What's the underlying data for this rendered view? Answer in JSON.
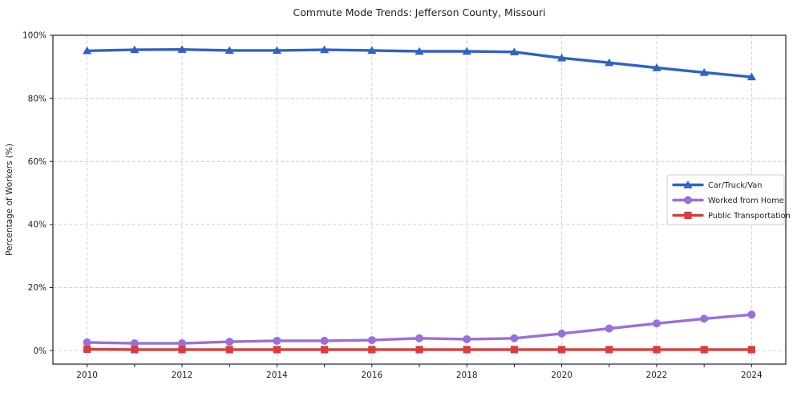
{
  "window": {
    "background": "#ffffff"
  },
  "chart_data": {
    "type": "line",
    "title": "Commute Mode Trends: Jefferson County, Missouri",
    "xlabel": "",
    "ylabel": "Percentage of Workers (%)",
    "grid": true,
    "grid_style": "dashed",
    "legend_position": "center-right",
    "xlim": [
      2009.28,
      2024.72
    ],
    "ylim": [
      -4.3,
      100
    ],
    "x": [
      2010,
      2011,
      2012,
      2013,
      2014,
      2015,
      2016,
      2017,
      2018,
      2019,
      2020,
      2021,
      2022,
      2023,
      2024
    ],
    "x_ticks": [
      2010,
      2012,
      2014,
      2016,
      2018,
      2020,
      2022,
      2024
    ],
    "x_tick_labels": [
      "2010",
      "2012",
      "2014",
      "2016",
      "2018",
      "2020",
      "2022",
      "2024"
    ],
    "y_ticks": [
      0,
      20,
      40,
      60,
      80,
      100
    ],
    "y_tick_labels": [
      "0%",
      "20%",
      "40%",
      "60%",
      "80%",
      "100%"
    ],
    "series": [
      {
        "name": "Car/Truck/Van",
        "color": "#2e62c6",
        "marker": "triangle",
        "values": [
          95.1,
          95.4,
          95.5,
          95.2,
          95.2,
          95.4,
          95.2,
          94.9,
          94.9,
          94.7,
          92.8,
          91.3,
          89.7,
          88.2,
          86.8
        ]
      },
      {
        "name": "Worked from Home",
        "color": "#9a6fd8",
        "marker": "circle",
        "values": [
          2.6,
          2.3,
          2.3,
          2.8,
          3.1,
          3.1,
          3.3,
          3.9,
          3.6,
          3.9,
          5.4,
          7.0,
          8.6,
          10.1,
          11.4
        ]
      },
      {
        "name": "Public Transportation",
        "color": "#de3b3b",
        "marker": "square",
        "values": [
          0.4,
          0.3,
          0.3,
          0.3,
          0.3,
          0.3,
          0.3,
          0.3,
          0.3,
          0.3,
          0.3,
          0.3,
          0.3,
          0.3,
          0.3
        ]
      }
    ],
    "style": {
      "grid_color": "#cccccc",
      "spine_color": "#1f1f1f",
      "text_color": "#1f1f1f",
      "legend_border": "#cccccc",
      "legend_bg": "#ffffff"
    }
  }
}
